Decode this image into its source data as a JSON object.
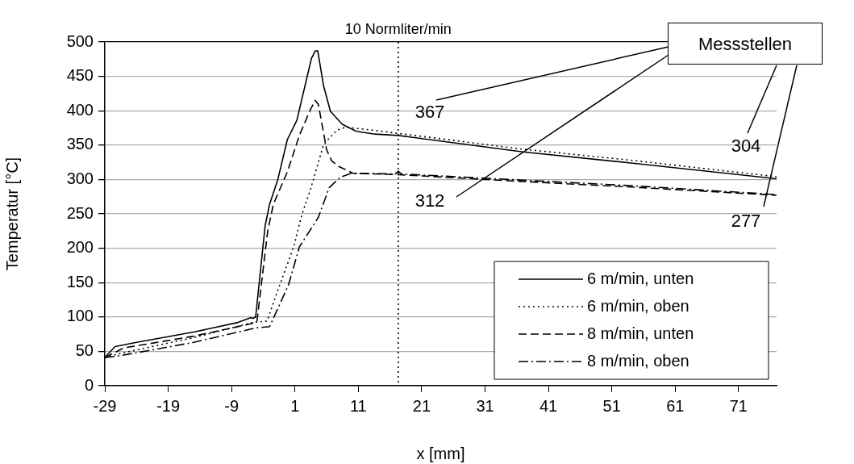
{
  "chart_data": {
    "type": "line",
    "xlabel": "x [mm]",
    "ylabel": "Temperatur [°C]",
    "xlim": [
      -29,
      77
    ],
    "xticks": [
      -29,
      -19,
      -9,
      1,
      11,
      21,
      31,
      41,
      51,
      61,
      71
    ],
    "ylim": [
      0,
      500
    ],
    "yticks": [
      0,
      50,
      100,
      150,
      200,
      250,
      300,
      350,
      400,
      450,
      500
    ],
    "grid": "y",
    "legend": "bottom right",
    "marker": "none",
    "series": [
      {
        "name": "6 m/min, unten",
        "color": "#000000",
        "line_style": "solid",
        "x": [
          -29,
          -27.4,
          -24,
          -15,
          -8,
          -6,
          -5.6,
          -5.2,
          -3.7,
          -3,
          -1.7,
          -0.2,
          1.3,
          3.6,
          4.2,
          4.6,
          5.5,
          6.6,
          8.5,
          10.7,
          13.6,
          17.3,
          37,
          54,
          77
        ],
        "values": [
          41,
          57,
          63,
          78,
          92,
          99,
          98,
          100,
          233,
          264,
          300,
          358,
          386,
          476,
          487,
          487,
          437,
          399,
          380,
          370,
          366,
          364,
          340,
          324,
          301
        ]
      },
      {
        "name": "6 m/min, oben",
        "color": "#000000",
        "line_style": "dotted",
        "x": [
          -29,
          -26.5,
          -15,
          -5.6,
          -3.4,
          -1.7,
          0.8,
          2.1,
          3.4,
          5.5,
          6.4,
          7.7,
          9,
          13,
          17.3,
          37,
          54,
          77
        ],
        "values": [
          41,
          47,
          70,
          92,
          94,
          139,
          202,
          249,
          284,
          350,
          360,
          372,
          376,
          372,
          367,
          344,
          328,
          304
        ]
      },
      {
        "name": "8 m/min, unten",
        "color": "#000000",
        "line_style": "dashed",
        "x": [
          -29,
          -26,
          -15,
          -6,
          -5,
          -3.3,
          -2.4,
          -0.2,
          1.7,
          3.4,
          4.2,
          4.7,
          6,
          6.8,
          7.9,
          10.2,
          17.3,
          37,
          54,
          77
        ],
        "values": [
          41,
          55,
          72,
          90,
          93,
          225,
          264,
          311,
          364,
          401,
          415,
          409,
          343,
          327,
          319,
          309,
          307,
          297,
          289,
          277
        ]
      },
      {
        "name": "8 m/min, oben",
        "color": "#000000",
        "line_style": "dashdot",
        "x": [
          -29,
          -27,
          -15,
          -5.2,
          -3,
          -2.4,
          0,
          1.7,
          4.7,
          6.4,
          8.1,
          9.9,
          16.8,
          17.3,
          17.8,
          37,
          54,
          77
        ],
        "values": [
          41,
          43,
          63,
          84,
          86,
          98,
          147,
          202,
          245,
          288,
          303,
          309,
          308,
          312,
          308,
          299,
          291,
          278
        ]
      }
    ],
    "ref_lines": [
      {
        "axis": "x",
        "value": 17.3,
        "label": "10 Normliter/min",
        "line_style": "dotted",
        "color": "#000000"
      }
    ],
    "annotations": [
      "Messstellen",
      "367",
      "312",
      "304",
      "277"
    ]
  }
}
